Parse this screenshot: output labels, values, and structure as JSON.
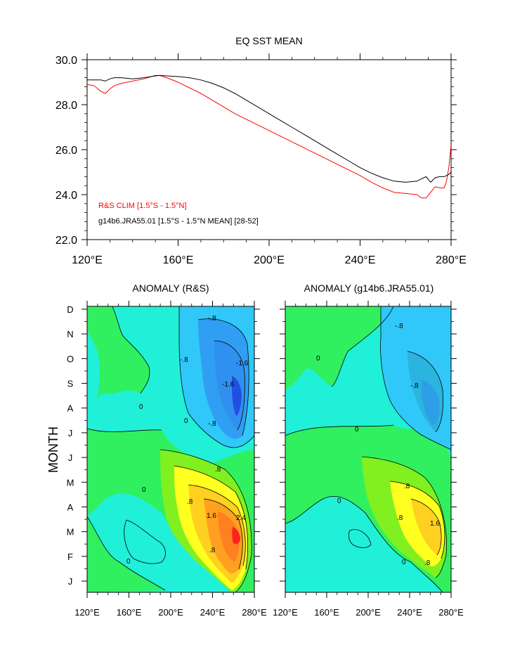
{
  "chart_data": [
    {
      "type": "line",
      "title": "EQ SST MEAN",
      "xlabel": "",
      "ylabel": "",
      "xlim": [
        120,
        280
      ],
      "ylim": [
        22,
        30
      ],
      "x_ticks": [
        120,
        160,
        200,
        240,
        280
      ],
      "x_tick_labels": [
        "120°E",
        "160°E",
        "200°E",
        "240°E",
        "280°E"
      ],
      "y_ticks": [
        22,
        24,
        26,
        28,
        30
      ],
      "y_tick_labels": [
        "22.0",
        "24.0",
        "26.0",
        "28.0",
        "30.0"
      ],
      "legend_position": "bottom-left",
      "series": [
        {
          "name": "R&S CLIM [1.5°S - 1.5°N]",
          "color": "#ff0000",
          "x": [
            120,
            123,
            126,
            128,
            130,
            132,
            135,
            140,
            145,
            150,
            152,
            155,
            160,
            165,
            170,
            175,
            180,
            185,
            190,
            195,
            200,
            205,
            210,
            215,
            220,
            225,
            230,
            235,
            240,
            245,
            250,
            255,
            260,
            265,
            267,
            269,
            271,
            273,
            275,
            277,
            278,
            279,
            280
          ],
          "y": [
            28.9,
            28.85,
            28.6,
            28.5,
            28.7,
            28.85,
            28.95,
            29.05,
            29.15,
            29.3,
            29.3,
            29.2,
            29.0,
            28.75,
            28.5,
            28.2,
            27.9,
            27.6,
            27.35,
            27.1,
            26.85,
            26.6,
            26.35,
            26.1,
            25.85,
            25.6,
            25.35,
            25.1,
            24.85,
            24.55,
            24.3,
            24.1,
            24.05,
            24.0,
            23.85,
            23.85,
            24.1,
            24.35,
            24.3,
            24.3,
            24.6,
            25.2,
            26.2
          ]
        },
        {
          "name": "g14b6.JRA55.01 [1.5°S - 1.5°N MEAN] [28-52]",
          "color": "#000000",
          "x": [
            120,
            123,
            126,
            128,
            130,
            132,
            135,
            140,
            145,
            150,
            152,
            155,
            160,
            165,
            170,
            175,
            180,
            185,
            190,
            195,
            200,
            205,
            210,
            215,
            220,
            225,
            230,
            235,
            240,
            245,
            250,
            255,
            260,
            265,
            267,
            269,
            271,
            273,
            275,
            277,
            278,
            279,
            280
          ],
          "y": [
            29.1,
            29.1,
            29.1,
            29.05,
            29.15,
            29.2,
            29.2,
            29.15,
            29.2,
            29.28,
            29.3,
            29.28,
            29.25,
            29.2,
            29.1,
            28.95,
            28.75,
            28.5,
            28.2,
            27.9,
            27.6,
            27.3,
            27.0,
            26.7,
            26.4,
            26.1,
            25.8,
            25.5,
            25.2,
            24.95,
            24.75,
            24.6,
            24.55,
            24.6,
            24.7,
            24.8,
            24.55,
            24.75,
            24.8,
            24.8,
            24.85,
            24.9,
            25.0
          ]
        }
      ]
    },
    {
      "type": "heatmap",
      "title": "ANOMALY (R&S)",
      "xlabel": "",
      "ylabel": "MONTH",
      "xlim": [
        120,
        280
      ],
      "x_ticks": [
        120,
        160,
        200,
        240,
        280
      ],
      "x_tick_labels": [
        "120°E",
        "160°E",
        "200°E",
        "240°E",
        "280°E"
      ],
      "y_tick_labels": [
        "J",
        "F",
        "M",
        "A",
        "M",
        "J",
        "J",
        "A",
        "S",
        "O",
        "N",
        "D"
      ],
      "contour_labels": [
        "0",
        "-.8",
        "-1.6",
        ".8",
        "1.6",
        "2.4"
      ],
      "colors": {
        "neg_strong": "#2050e0",
        "neg_mid": "#3090f0",
        "neg_light": "#30c8f8",
        "neutral_neg": "#20f0d8",
        "neutral_pos": "#30f060",
        "pos_light": "#80f020",
        "pos_yellow": "#ffff20",
        "pos_gold": "#ffd020",
        "pos_orange": "#ffa020",
        "pos_red": "#ff2020"
      },
      "anomaly_extrema": [
        {
          "label": "warm core",
          "lon": 262,
          "month": 2.5,
          "value": 2.4
        },
        {
          "label": "cold core",
          "lon": 262,
          "month": 8.8,
          "value": -1.6
        }
      ]
    },
    {
      "type": "heatmap",
      "title": "ANOMALY (g14b6.JRA55.01)",
      "xlabel": "",
      "ylabel": "",
      "xlim": [
        120,
        280
      ],
      "x_ticks": [
        120,
        160,
        200,
        240,
        280
      ],
      "x_tick_labels": [
        "120°E",
        "160°E",
        "200°E",
        "240°E",
        "280°E"
      ],
      "contour_labels": [
        "0",
        "-.8",
        ".8",
        "1.6"
      ],
      "anomaly_extrema": [
        {
          "label": "warm core",
          "lon": 262,
          "month": 2.5,
          "value": 1.6
        },
        {
          "label": "cold core",
          "lon": 262,
          "month": 8.7,
          "value": -1.0
        }
      ]
    }
  ]
}
